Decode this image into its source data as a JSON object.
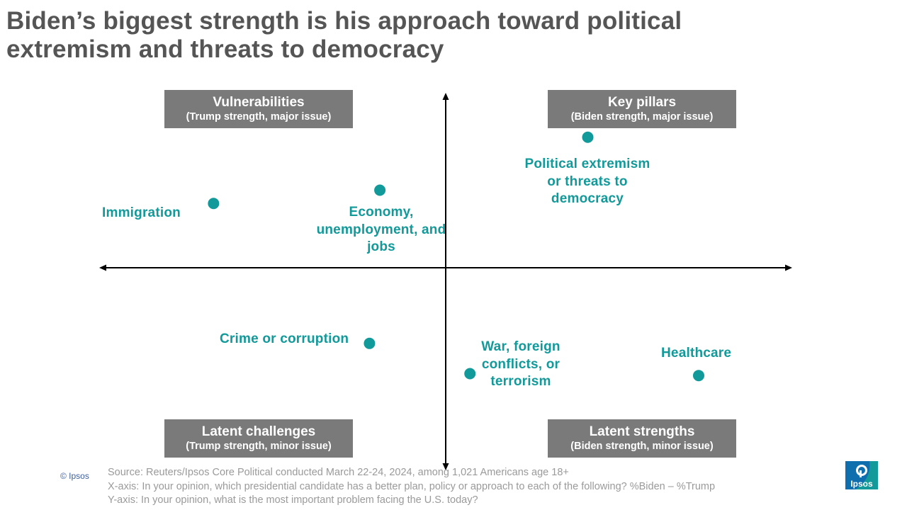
{
  "title": {
    "line1": "Biden’s biggest strength is his approach toward political",
    "line2": "extremism and threats to democracy"
  },
  "quadrants": {
    "top_left": {
      "name": "Vulnerabilities",
      "sub": "(Trump strength, major issue)"
    },
    "top_right": {
      "name": "Key pillars",
      "sub": "(Biden strength, major issue)"
    },
    "bottom_left": {
      "name": "Latent challenges",
      "sub": "(Trump strength, minor issue)"
    },
    "bottom_right": {
      "name": "Latent strengths",
      "sub": "(Biden strength, minor issue)"
    }
  },
  "chart_data": {
    "type": "scatter",
    "xlabel": "",
    "ylabel": "",
    "xlim": [
      -1,
      1
    ],
    "ylim": [
      -1,
      1
    ],
    "grid": false,
    "point_color": "#12999a",
    "points": [
      {
        "id": "immigration",
        "label_lines": [
          "Immigration"
        ],
        "x": -0.67,
        "y": 0.34
      },
      {
        "id": "economy",
        "label_lines": [
          "Economy,",
          "unemployment, and",
          "jobs"
        ],
        "x": -0.19,
        "y": 0.41
      },
      {
        "id": "extremism",
        "label_lines": [
          "Political extremism",
          "or threats to",
          "democracy"
        ],
        "x": 0.41,
        "y": 0.69
      },
      {
        "id": "crime",
        "label_lines": [
          "Crime or corruption"
        ],
        "x": -0.22,
        "y": -0.4
      },
      {
        "id": "war",
        "label_lines": [
          "War, foreign",
          "conflicts, or",
          "terrorism"
        ],
        "x": 0.07,
        "y": -0.56
      },
      {
        "id": "healthcare",
        "label_lines": [
          "Healthcare"
        ],
        "x": 0.73,
        "y": -0.57
      }
    ]
  },
  "footer": {
    "copyright": "© Ipsos",
    "source": "Source: Reuters/Ipsos Core Political conducted March 22-24, 2024, among 1,021 Americans age 18+",
    "x_axis_note": "X-axis: In your opinion, which presidential candidate has a better plan, policy or approach to each of the following? %Biden – %Trump",
    "y_axis_note": "Y-axis: In your opinion, what is the most important problem facing the U.S. today?"
  },
  "logo": {
    "text": "Ipsos",
    "color": "#12999a"
  }
}
